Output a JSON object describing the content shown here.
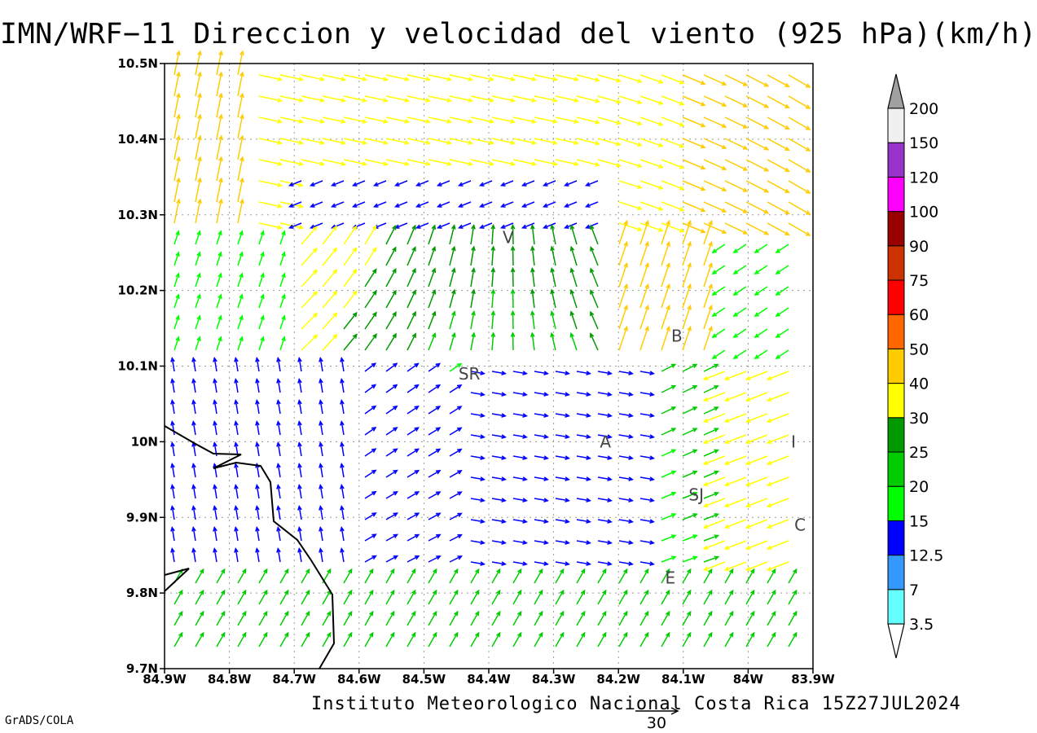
{
  "title": "IMN/WRF−11 Direccion y velocidad del viento (925 hPa)(km/h)",
  "footer": "Instituto Meteorologico Nacional Costa Rica 15Z27JUL2024",
  "software_credit": "GrADS/COLA",
  "reference_vector": {
    "label": "30",
    "speed_kmh": 30
  },
  "map": {
    "lon_range": [
      -84.9,
      -83.9
    ],
    "lat_range": [
      9.7,
      10.5
    ],
    "x_ticks": [
      "84.9W",
      "84.8W",
      "84.7W",
      "84.6W",
      "84.5W",
      "84.4W",
      "84.3W",
      "84.2W",
      "84.1W",
      "84W",
      "83.9W"
    ],
    "y_ticks": [
      "9.7N",
      "9.8N",
      "9.9N",
      "10N",
      "10.1N",
      "10.2N",
      "10.3N",
      "10.4N",
      "10.5N"
    ],
    "grid": true,
    "coastline": true,
    "cities": [
      {
        "label": "V",
        "lon": -84.37,
        "lat": 10.27
      },
      {
        "label": "SR",
        "lon": -84.43,
        "lat": 10.09
      },
      {
        "label": "B",
        "lon": -84.11,
        "lat": 10.14
      },
      {
        "label": "A",
        "lon": -84.22,
        "lat": 10.0
      },
      {
        "label": "I",
        "lon": -83.93,
        "lat": 10.0
      },
      {
        "label": "SJ",
        "lon": -84.08,
        "lat": 9.93
      },
      {
        "label": "C",
        "lon": -83.92,
        "lat": 9.89
      },
      {
        "label": "E",
        "lon": -84.12,
        "lat": 9.82
      }
    ]
  },
  "colorbar": {
    "levels": [
      "3.5",
      "7",
      "12.5",
      "15",
      "20",
      "25",
      "30",
      "40",
      "50",
      "60",
      "75",
      "90",
      "100",
      "120",
      "150",
      "200"
    ],
    "colors": [
      "#66ffff",
      "#3399ff",
      "#0000ff",
      "#00ff00",
      "#00cc00",
      "#009900",
      "#ffff00",
      "#ffcc00",
      "#ff6600",
      "#ff0000",
      "#cc3300",
      "#990000",
      "#ff00ff",
      "#9933cc",
      "#f0f0f0",
      "#a0a0a0"
    ]
  }
}
